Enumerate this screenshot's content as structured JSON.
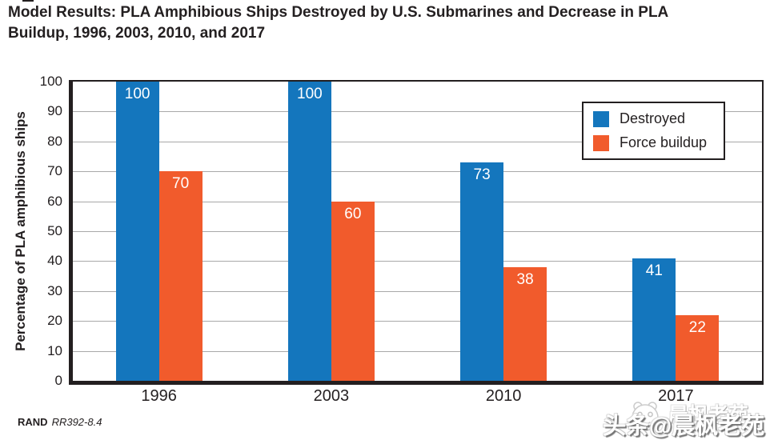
{
  "page": {
    "title_lines": [
      "Model Results: PLA Amphibious Ships Destroyed by U.S. Submarines and Decrease in PLA",
      "Buildup, 1996, 2003, 2010, and 2017"
    ]
  },
  "chart_data": {
    "type": "bar",
    "title": "Model Results: PLA Amphibious Ships Destroyed by U.S. Submarines and Decrease in PLA Buildup, 1996, 2003, 2010, and 2017",
    "categories": [
      "1996",
      "2003",
      "2010",
      "2017"
    ],
    "series": [
      {
        "name": "Destroyed",
        "color": "#1476bd",
        "values": [
          100,
          100,
          73,
          41
        ]
      },
      {
        "name": "Force buildup",
        "color": "#f15b2c",
        "values": [
          70,
          60,
          38,
          22
        ]
      }
    ],
    "xlabel": "",
    "ylabel": "Percentage of PLA amphibious ships",
    "ylim": [
      0,
      100
    ],
    "ytick_step": 10,
    "grid": true,
    "legend_position": "upper right",
    "value_labels": true
  },
  "source": {
    "publisher": "RAND",
    "document_ref": "RR392-8.4"
  },
  "watermark": {
    "main": "头条@晨枫老苑",
    "ghost": "晨枫老苑",
    "logo": "panda-face-logo"
  }
}
